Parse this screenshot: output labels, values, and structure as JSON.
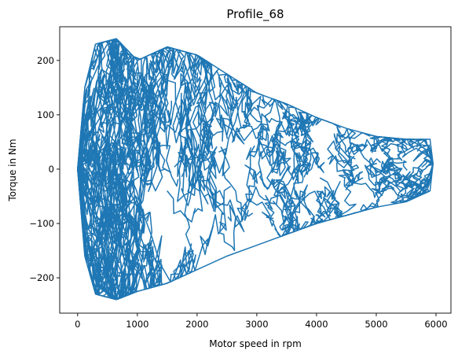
{
  "chart_data": {
    "type": "line",
    "title": "Profile_68",
    "xlabel": "Motor speed in rpm",
    "ylabel": "Torque in Nm",
    "xlim": [
      -300,
      6250
    ],
    "ylim": [
      -265,
      262
    ],
    "xticks": [
      0,
      1000,
      2000,
      3000,
      4000,
      5000,
      6000
    ],
    "yticks": [
      -200,
      -100,
      0,
      100,
      200
    ],
    "grid": false,
    "series": [
      {
        "color": "#1f77b4",
        "description_points": [
          [
            0,
            0
          ],
          [
            120,
            150
          ],
          [
            300,
            230
          ],
          [
            650,
            240
          ],
          [
            1000,
            200
          ],
          [
            1500,
            225
          ],
          [
            2000,
            210
          ],
          [
            2500,
            175
          ],
          [
            3000,
            140
          ],
          [
            3500,
            120
          ],
          [
            4000,
            95
          ],
          [
            4500,
            75
          ],
          [
            5000,
            60
          ],
          [
            5500,
            55
          ],
          [
            5900,
            55
          ],
          [
            5950,
            10
          ],
          [
            5900,
            -40
          ],
          [
            5500,
            -60
          ],
          [
            5000,
            -70
          ],
          [
            4500,
            -85
          ],
          [
            4000,
            -100
          ],
          [
            3500,
            -120
          ],
          [
            3000,
            -140
          ],
          [
            2500,
            -160
          ],
          [
            2000,
            -185
          ],
          [
            1500,
            -210
          ],
          [
            1000,
            -225
          ],
          [
            650,
            -240
          ],
          [
            300,
            -230
          ],
          [
            120,
            -160
          ],
          [
            0,
            0
          ]
        ]
      }
    ]
  }
}
